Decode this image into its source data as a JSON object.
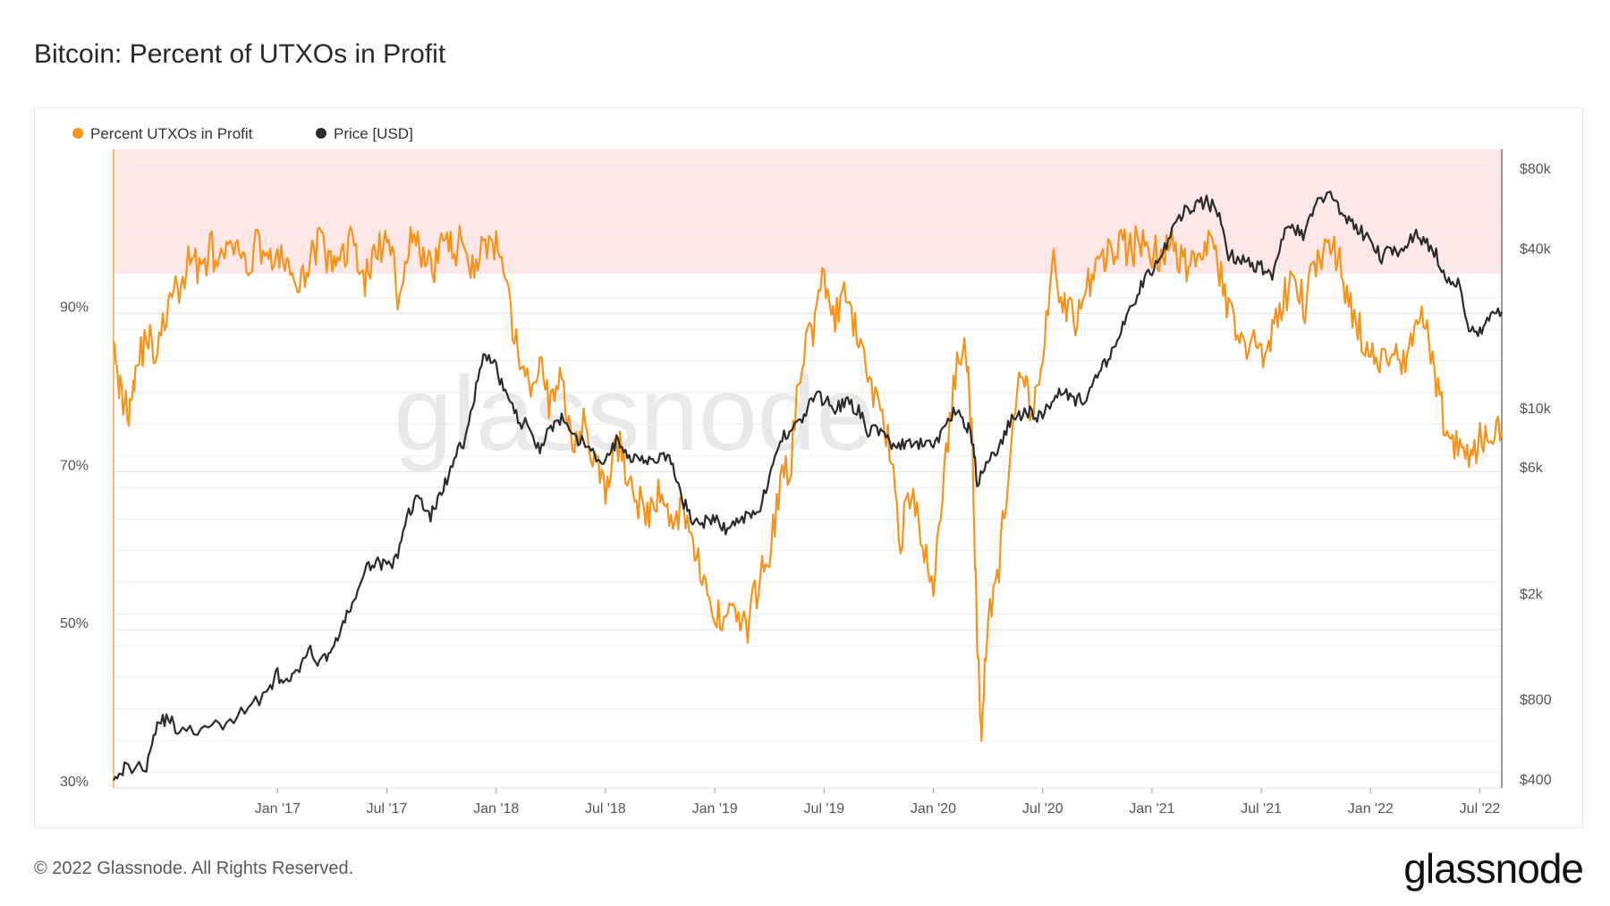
{
  "page": {
    "title": "Bitcoin: Percent of UTXOs in Profit",
    "copyright": "© 2022 Glassnode. All Rights Reserved.",
    "brand": "glassnode",
    "watermark": "glassnode"
  },
  "colors": {
    "profit": "#f7931a",
    "price": "#2b2b2b",
    "band": "#fde7e7",
    "grid": "#eeeeee",
    "axis": "#555555"
  },
  "chart_data": {
    "type": "line",
    "title": "Bitcoin: Percent of UTXOs in Profit",
    "legend": {
      "placement": "top-left",
      "entries": [
        "Percent UTXOs in Profit",
        "Price [USD]"
      ]
    },
    "x_range": [
      2016.25,
      2022.6
    ],
    "x_ticks": [
      {
        "label": "Jan '17",
        "t": 2017.0
      },
      {
        "label": "Jul '17",
        "t": 2017.5
      },
      {
        "label": "Jan '18",
        "t": 2018.0
      },
      {
        "label": "Jul '18",
        "t": 2018.5
      },
      {
        "label": "Jan '19",
        "t": 2019.0
      },
      {
        "label": "Jul '19",
        "t": 2019.5
      },
      {
        "label": "Jan '20",
        "t": 2020.0
      },
      {
        "label": "Jul '20",
        "t": 2020.5
      },
      {
        "label": "Jan '21",
        "t": 2021.0
      },
      {
        "label": "Jul '21",
        "t": 2021.5
      },
      {
        "label": "Jan '22",
        "t": 2022.0
      },
      {
        "label": "Jul '22",
        "t": 2022.5
      }
    ],
    "y_left": {
      "range": [
        30,
        113
      ],
      "ticks": [
        {
          "label": "30%",
          "v": 30
        },
        {
          "label": "50%",
          "v": 50
        },
        {
          "label": "70%",
          "v": 70
        },
        {
          "label": "90%",
          "v": 90
        }
      ]
    },
    "y_right": {
      "scale": "log",
      "range": [
        370,
        110000
      ],
      "ticks": [
        {
          "label": "$400",
          "v": 400
        },
        {
          "label": "$800",
          "v": 800
        },
        {
          "label": "$2k",
          "v": 2000
        },
        {
          "label": "$6k",
          "v": 6000
        },
        {
          "label": "$10k",
          "v": 10000
        },
        {
          "label": "$40k",
          "v": 40000
        },
        {
          "label": "$80k",
          "v": 80000
        }
      ]
    },
    "highlight_band": {
      "from": 95,
      "to": 113,
      "axis": "left"
    },
    "series": [
      {
        "name": "Percent UTXOs in Profit",
        "axis": "left",
        "points": [
          [
            2016.25,
            89
          ],
          [
            2016.28,
            80
          ],
          [
            2016.32,
            78
          ],
          [
            2016.35,
            83
          ],
          [
            2016.4,
            87
          ],
          [
            2016.45,
            85
          ],
          [
            2016.5,
            91
          ],
          [
            2016.55,
            93
          ],
          [
            2016.6,
            97
          ],
          [
            2016.65,
            96
          ],
          [
            2016.7,
            98
          ],
          [
            2016.75,
            96
          ],
          [
            2016.8,
            99
          ],
          [
            2016.85,
            95
          ],
          [
            2016.9,
            99
          ],
          [
            2016.95,
            98
          ],
          [
            2017.0,
            96
          ],
          [
            2017.05,
            97
          ],
          [
            2017.1,
            92
          ],
          [
            2017.15,
            98
          ],
          [
            2017.2,
            99
          ],
          [
            2017.25,
            95
          ],
          [
            2017.3,
            98
          ],
          [
            2017.35,
            99
          ],
          [
            2017.4,
            94
          ],
          [
            2017.45,
            98
          ],
          [
            2017.5,
            99
          ],
          [
            2017.55,
            93
          ],
          [
            2017.6,
            99
          ],
          [
            2017.65,
            98
          ],
          [
            2017.7,
            95
          ],
          [
            2017.75,
            99
          ],
          [
            2017.8,
            98
          ],
          [
            2017.85,
            99
          ],
          [
            2017.9,
            96
          ],
          [
            2017.95,
            99
          ],
          [
            2018.0,
            98
          ],
          [
            2018.05,
            92
          ],
          [
            2018.1,
            85
          ],
          [
            2018.15,
            80
          ],
          [
            2018.2,
            84
          ],
          [
            2018.25,
            78
          ],
          [
            2018.3,
            82
          ],
          [
            2018.35,
            74
          ],
          [
            2018.4,
            77
          ],
          [
            2018.45,
            71
          ],
          [
            2018.5,
            67
          ],
          [
            2018.55,
            74
          ],
          [
            2018.6,
            70
          ],
          [
            2018.65,
            66
          ],
          [
            2018.7,
            64
          ],
          [
            2018.75,
            68
          ],
          [
            2018.8,
            63
          ],
          [
            2018.85,
            66
          ],
          [
            2018.9,
            62
          ],
          [
            2018.95,
            55
          ],
          [
            2019.0,
            51
          ],
          [
            2019.05,
            53
          ],
          [
            2019.1,
            52
          ],
          [
            2019.15,
            50
          ],
          [
            2019.2,
            56
          ],
          [
            2019.25,
            60
          ],
          [
            2019.3,
            68
          ],
          [
            2019.35,
            72
          ],
          [
            2019.4,
            85
          ],
          [
            2019.45,
            88
          ],
          [
            2019.5,
            95
          ],
          [
            2019.55,
            89
          ],
          [
            2019.6,
            92
          ],
          [
            2019.65,
            87
          ],
          [
            2019.7,
            82
          ],
          [
            2019.75,
            79
          ],
          [
            2019.8,
            73
          ],
          [
            2019.85,
            62
          ],
          [
            2019.9,
            68
          ],
          [
            2019.95,
            60
          ],
          [
            2020.0,
            56
          ],
          [
            2020.05,
            70
          ],
          [
            2020.1,
            82
          ],
          [
            2020.15,
            86
          ],
          [
            2020.18,
            72
          ],
          [
            2020.2,
            48
          ],
          [
            2020.22,
            38
          ],
          [
            2020.25,
            52
          ],
          [
            2020.3,
            58
          ],
          [
            2020.35,
            72
          ],
          [
            2020.4,
            82
          ],
          [
            2020.45,
            78
          ],
          [
            2020.5,
            84
          ],
          [
            2020.55,
            96
          ],
          [
            2020.6,
            91
          ],
          [
            2020.65,
            89
          ],
          [
            2020.7,
            93
          ],
          [
            2020.75,
            96
          ],
          [
            2020.8,
            98
          ],
          [
            2020.85,
            99
          ],
          [
            2020.9,
            98
          ],
          [
            2020.95,
            99
          ],
          [
            2021.0,
            98
          ],
          [
            2021.05,
            97
          ],
          [
            2021.1,
            99
          ],
          [
            2021.15,
            96
          ],
          [
            2021.2,
            98
          ],
          [
            2021.25,
            99
          ],
          [
            2021.3,
            96
          ],
          [
            2021.35,
            90
          ],
          [
            2021.4,
            87
          ],
          [
            2021.45,
            86
          ],
          [
            2021.5,
            85
          ],
          [
            2021.55,
            87
          ],
          [
            2021.6,
            92
          ],
          [
            2021.65,
            94
          ],
          [
            2021.7,
            91
          ],
          [
            2021.75,
            97
          ],
          [
            2021.8,
            99
          ],
          [
            2021.85,
            97
          ],
          [
            2021.9,
            91
          ],
          [
            2021.95,
            88
          ],
          [
            2022.0,
            85
          ],
          [
            2022.05,
            83
          ],
          [
            2022.1,
            86
          ],
          [
            2022.15,
            84
          ],
          [
            2022.2,
            86
          ],
          [
            2022.25,
            90
          ],
          [
            2022.3,
            82
          ],
          [
            2022.35,
            74
          ],
          [
            2022.4,
            73
          ],
          [
            2022.45,
            72
          ],
          [
            2022.5,
            74
          ],
          [
            2022.55,
            75
          ],
          [
            2022.6,
            75
          ]
        ]
      },
      {
        "name": "Price [USD]",
        "axis": "right",
        "points": [
          [
            2016.25,
            420
          ],
          [
            2016.3,
            440
          ],
          [
            2016.4,
            450
          ],
          [
            2016.45,
            650
          ],
          [
            2016.5,
            680
          ],
          [
            2016.55,
            600
          ],
          [
            2016.65,
            610
          ],
          [
            2016.75,
            640
          ],
          [
            2016.85,
            720
          ],
          [
            2016.95,
            850
          ],
          [
            2017.0,
            990
          ],
          [
            2017.05,
            900
          ],
          [
            2017.1,
            1050
          ],
          [
            2017.15,
            1200
          ],
          [
            2017.2,
            1100
          ],
          [
            2017.25,
            1250
          ],
          [
            2017.3,
            1500
          ],
          [
            2017.35,
            1900
          ],
          [
            2017.4,
            2400
          ],
          [
            2017.45,
            2700
          ],
          [
            2017.5,
            2500
          ],
          [
            2017.55,
            2700
          ],
          [
            2017.6,
            4100
          ],
          [
            2017.65,
            4600
          ],
          [
            2017.7,
            3900
          ],
          [
            2017.75,
            4800
          ],
          [
            2017.8,
            6000
          ],
          [
            2017.85,
            7500
          ],
          [
            2017.9,
            11000
          ],
          [
            2017.95,
            16000
          ],
          [
            2018.0,
            14000
          ],
          [
            2018.05,
            11000
          ],
          [
            2018.1,
            9000
          ],
          [
            2018.15,
            8500
          ],
          [
            2018.2,
            7000
          ],
          [
            2018.25,
            8500
          ],
          [
            2018.3,
            9000
          ],
          [
            2018.35,
            7600
          ],
          [
            2018.4,
            7500
          ],
          [
            2018.45,
            6500
          ],
          [
            2018.5,
            6300
          ],
          [
            2018.55,
            7500
          ],
          [
            2018.6,
            6500
          ],
          [
            2018.65,
            6700
          ],
          [
            2018.7,
            6400
          ],
          [
            2018.75,
            6500
          ],
          [
            2018.8,
            6300
          ],
          [
            2018.85,
            4500
          ],
          [
            2018.9,
            3800
          ],
          [
            2018.95,
            3700
          ],
          [
            2019.0,
            3800
          ],
          [
            2019.05,
            3500
          ],
          [
            2019.1,
            3700
          ],
          [
            2019.15,
            4000
          ],
          [
            2019.2,
            4100
          ],
          [
            2019.25,
            5300
          ],
          [
            2019.3,
            7500
          ],
          [
            2019.35,
            8500
          ],
          [
            2019.4,
            9000
          ],
          [
            2019.45,
            11000
          ],
          [
            2019.5,
            10800
          ],
          [
            2019.55,
            10000
          ],
          [
            2019.6,
            10500
          ],
          [
            2019.65,
            10000
          ],
          [
            2019.7,
            8200
          ],
          [
            2019.75,
            8300
          ],
          [
            2019.8,
            7400
          ],
          [
            2019.85,
            7200
          ],
          [
            2019.9,
            7200
          ],
          [
            2019.95,
            7300
          ],
          [
            2020.0,
            7200
          ],
          [
            2020.05,
            8500
          ],
          [
            2020.1,
            9800
          ],
          [
            2020.15,
            8800
          ],
          [
            2020.18,
            7500
          ],
          [
            2020.2,
            5000
          ],
          [
            2020.25,
            6500
          ],
          [
            2020.3,
            7000
          ],
          [
            2020.35,
            8800
          ],
          [
            2020.4,
            9500
          ],
          [
            2020.45,
            9600
          ],
          [
            2020.5,
            9200
          ],
          [
            2020.55,
            11200
          ],
          [
            2020.6,
            11700
          ],
          [
            2020.65,
            10700
          ],
          [
            2020.7,
            10800
          ],
          [
            2020.75,
            13000
          ],
          [
            2020.8,
            15500
          ],
          [
            2020.85,
            18500
          ],
          [
            2020.9,
            23000
          ],
          [
            2020.95,
            29000
          ],
          [
            2021.0,
            33000
          ],
          [
            2021.05,
            38000
          ],
          [
            2021.1,
            48000
          ],
          [
            2021.15,
            56000
          ],
          [
            2021.2,
            58000
          ],
          [
            2021.25,
            60000
          ],
          [
            2021.3,
            55000
          ],
          [
            2021.35,
            38000
          ],
          [
            2021.4,
            36000
          ],
          [
            2021.45,
            35000
          ],
          [
            2021.5,
            34000
          ],
          [
            2021.55,
            32000
          ],
          [
            2021.6,
            45000
          ],
          [
            2021.65,
            47000
          ],
          [
            2021.7,
            44000
          ],
          [
            2021.75,
            60000
          ],
          [
            2021.8,
            64000
          ],
          [
            2021.85,
            58000
          ],
          [
            2021.9,
            50000
          ],
          [
            2021.95,
            47000
          ],
          [
            2022.0,
            42000
          ],
          [
            2022.05,
            37000
          ],
          [
            2022.1,
            40000
          ],
          [
            2022.15,
            39000
          ],
          [
            2022.2,
            45000
          ],
          [
            2022.25,
            42000
          ],
          [
            2022.3,
            38000
          ],
          [
            2022.35,
            30000
          ],
          [
            2022.4,
            29000
          ],
          [
            2022.45,
            20000
          ],
          [
            2022.5,
            19500
          ],
          [
            2022.55,
            21500
          ],
          [
            2022.6,
            23000
          ]
        ]
      }
    ]
  }
}
